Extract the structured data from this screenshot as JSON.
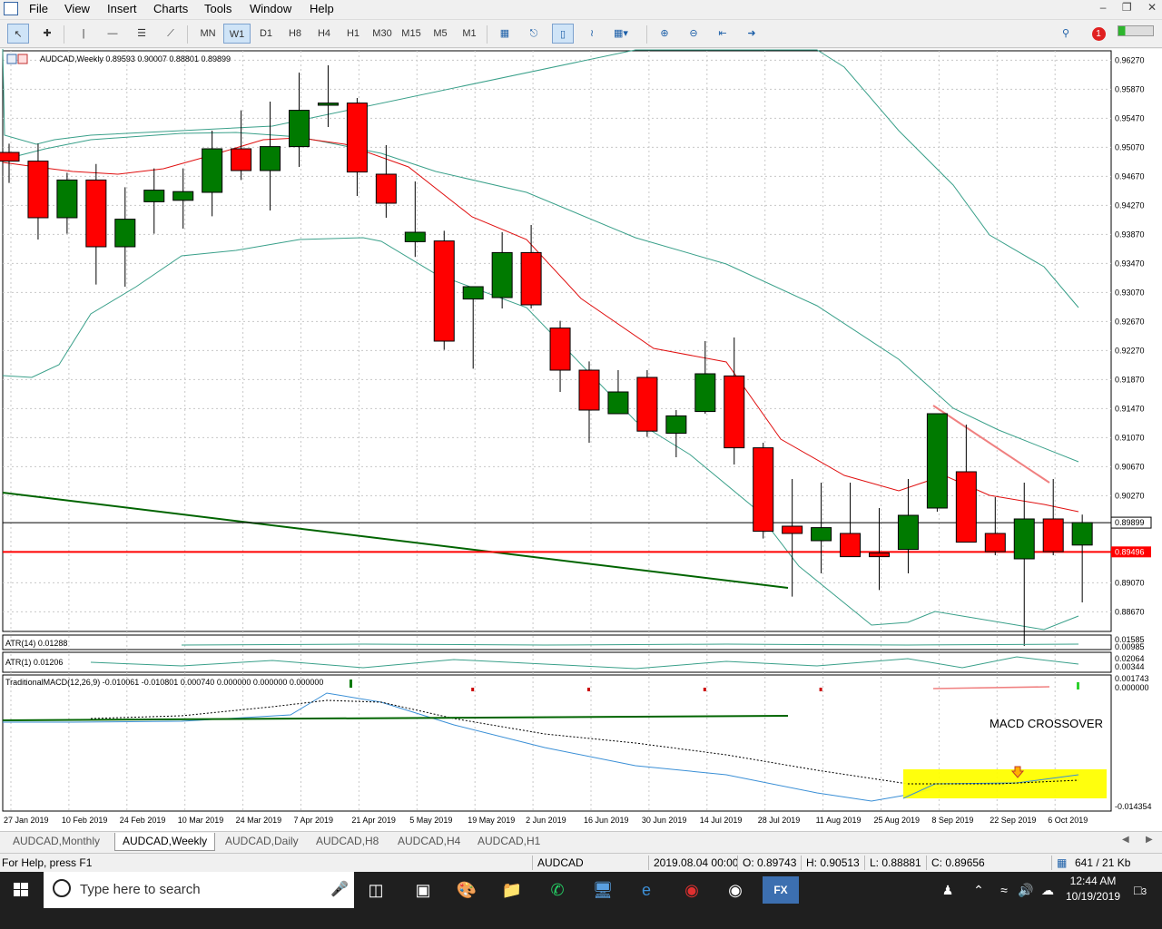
{
  "menu": [
    "File",
    "View",
    "Insert",
    "Charts",
    "Tools",
    "Window",
    "Help"
  ],
  "timeframes": [
    "MN",
    "W1",
    "D1",
    "H8",
    "H4",
    "H1",
    "M30",
    "M15",
    "M5",
    "M1"
  ],
  "active_timeframe": "W1",
  "notification_count": "1",
  "chart": {
    "symbol_header": "AUDCAD,Weekly  0.89593 0.90007 0.88801 0.89899",
    "price_axis": [
      "0.96270",
      "0.95870",
      "0.95470",
      "0.95070",
      "0.94670",
      "0.94270",
      "0.93870",
      "0.93470",
      "0.93070",
      "0.92670",
      "0.92270",
      "0.91870",
      "0.91470",
      "0.91070",
      "0.90670",
      "0.90270",
      "0.89899",
      "0.89496",
      "0.89070",
      "0.88670"
    ],
    "current_price": "0.89899",
    "level_price": "0.89496",
    "atr14_label": "ATR(14) 0.01288",
    "atr14_axis": [
      "0.01585",
      "0.00985"
    ],
    "atr1_label": "ATR(1) 0.01206",
    "atr1_axis": [
      "0.02064",
      "0.00344"
    ],
    "macd_label": "TraditionalMACD(12,26,9) -0.010061 -0.010801 0.000740 0.000000 0.000000 0.000000",
    "macd_axis": [
      "0.001743",
      "0.000000",
      "-0.014354"
    ],
    "annotation": "MACD CROSSOVER",
    "date_axis": [
      "27 Jan 2019",
      "10 Feb 2019",
      "24 Feb 2019",
      "10 Mar 2019",
      "24 Mar 2019",
      "7 Apr 2019",
      "21 Apr 2019",
      "5 May 2019",
      "19 May 2019",
      "2 Jun 2019",
      "16 Jun 2019",
      "30 Jun 2019",
      "14 Jul 2019",
      "28 Jul 2019",
      "11 Aug 2019",
      "25 Aug 2019",
      "8 Sep 2019",
      "22 Sep 2019",
      "6 Oct 2019"
    ],
    "colors": {
      "bull": "#007a00",
      "bear": "#ff0000",
      "bb": "#3aa08a",
      "ma": "#e01010",
      "trend": "#006400",
      "highlight": "#ffff00"
    }
  },
  "chart_data": {
    "type": "candlestick",
    "candles_ohlc": [
      [
        0.95,
        0.9512,
        0.9458,
        0.9488
      ],
      [
        0.9488,
        0.9512,
        0.938,
        0.941
      ],
      [
        0.941,
        0.9472,
        0.9388,
        0.9462
      ],
      [
        0.9462,
        0.9484,
        0.9318,
        0.937
      ],
      [
        0.937,
        0.9452,
        0.9315,
        0.9408
      ],
      [
        0.9432,
        0.9478,
        0.9388,
        0.9448
      ],
      [
        0.9434,
        0.9478,
        0.9395,
        0.9446
      ],
      [
        0.9445,
        0.953,
        0.9412,
        0.9505
      ],
      [
        0.9505,
        0.9558,
        0.9462,
        0.9475
      ],
      [
        0.9475,
        0.957,
        0.942,
        0.9508
      ],
      [
        0.9508,
        0.961,
        0.948,
        0.9558
      ],
      [
        0.9565,
        0.962,
        0.9535,
        0.9568
      ],
      [
        0.9568,
        0.9575,
        0.944,
        0.9473
      ],
      [
        0.947,
        0.951,
        0.941,
        0.943
      ],
      [
        0.9377,
        0.946,
        0.9356,
        0.939
      ],
      [
        0.9378,
        0.9392,
        0.9228,
        0.924
      ],
      [
        0.9298,
        0.9312,
        0.9202,
        0.9315
      ],
      [
        0.93,
        0.939,
        0.9285,
        0.9362
      ],
      [
        0.9362,
        0.94,
        0.9285,
        0.929
      ],
      [
        0.9258,
        0.9268,
        0.917,
        0.92
      ],
      [
        0.92,
        0.9212,
        0.91,
        0.9145
      ],
      [
        0.914,
        0.92,
        0.914,
        0.917
      ],
      [
        0.919,
        0.92,
        0.9108,
        0.9116
      ],
      [
        0.9113,
        0.9145,
        0.908,
        0.9137
      ],
      [
        0.9143,
        0.924,
        0.914,
        0.9195
      ],
      [
        0.9192,
        0.9245,
        0.907,
        0.9093
      ],
      [
        0.9093,
        0.91,
        0.8968,
        0.8978
      ],
      [
        0.8985,
        0.905,
        0.8888,
        0.8975
      ],
      [
        0.8965,
        0.9045,
        0.892,
        0.8983
      ],
      [
        0.8975,
        0.9045,
        0.896,
        0.8943
      ],
      [
        0.8948,
        0.901,
        0.8897,
        0.8943
      ],
      [
        0.8953,
        0.905,
        0.892,
        0.9
      ],
      [
        0.901,
        0.914,
        0.9005,
        0.914
      ],
      [
        0.906,
        0.9125,
        0.8975,
        0.8963
      ],
      [
        0.8975,
        0.9025,
        0.8945,
        0.895
      ],
      [
        0.894,
        0.9045,
        0.882,
        0.8995
      ],
      [
        0.8995,
        0.905,
        0.8945,
        0.895
      ],
      [
        0.8959,
        0.9001,
        0.888,
        0.899
      ]
    ]
  },
  "tabs": [
    "AUDCAD,Monthly",
    "AUDCAD,Weekly",
    "AUDCAD,Daily",
    "AUDCAD,H8",
    "AUDCAD,H4",
    "AUDCAD,H1"
  ],
  "active_tab": "AUDCAD,Weekly",
  "status": {
    "help": "For Help, press F1",
    "symbol": "AUDCAD",
    "datetime": "2019.08.04 00:00",
    "open": "O: 0.89743",
    "high": "H: 0.90513",
    "low": "L: 0.88881",
    "close": "C: 0.89656",
    "traffic": "641 / 21 Kb"
  },
  "taskbar": {
    "search_placeholder": "Type here to search",
    "time": "12:44 AM",
    "date": "10/19/2019",
    "notif_count": "3"
  }
}
